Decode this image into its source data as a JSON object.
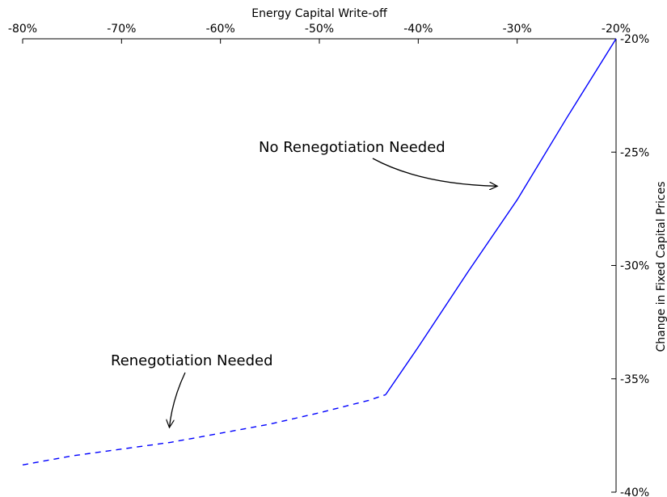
{
  "chart_data": {
    "type": "line",
    "xlabel": "Energy Capital Write-off",
    "ylabel": "Change in Fixed Capital Prices",
    "xlim": [
      -80,
      -20
    ],
    "ylim": [
      -40,
      -20
    ],
    "x_ticks": [
      "-80%",
      "-70%",
      "-60%",
      "-50%",
      "-40%",
      "-30%",
      "-20%"
    ],
    "y_ticks": [
      "-20%",
      "-25%",
      "-30%",
      "-35%",
      "-40%"
    ],
    "x_axis_position": "top",
    "y_axis_position": "right",
    "grid": false,
    "series": [
      {
        "style": "dashed",
        "color": "#0000ff",
        "x": [
          -80,
          -75,
          -70,
          -65,
          -60,
          -55,
          -50,
          -45,
          -43.3
        ],
        "y": [
          -38.8,
          -38.4,
          -38.1,
          -37.8,
          -37.4,
          -37.0,
          -36.5,
          -35.95,
          -35.7
        ]
      },
      {
        "style": "solid",
        "color": "#0000ff",
        "x": [
          -43.3,
          -40,
          -35,
          -30,
          -25,
          -20
        ],
        "y": [
          -35.7,
          -33.6,
          -30.3,
          -27.1,
          -23.5,
          -20.0
        ]
      }
    ],
    "annotations": [
      {
        "text": "No Renegotiation Needed",
        "target_x": -32,
        "target_y": -26.5
      },
      {
        "text": "Renegotiation Needed",
        "target_x": -65,
        "target_y": -37.4
      }
    ]
  }
}
